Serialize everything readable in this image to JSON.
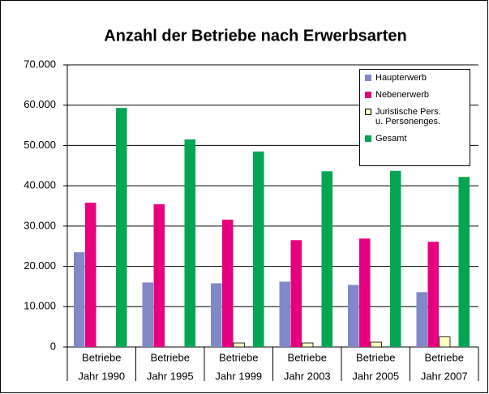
{
  "chart_data": {
    "type": "bar",
    "title": "Anzahl der Betriebe nach Erwerbsarten",
    "categories": [
      [
        "Betriebe",
        "Jahr 1990"
      ],
      [
        "Betriebe",
        "Jahr 1995"
      ],
      [
        "Betriebe",
        "Jahr 1999"
      ],
      [
        "Betriebe",
        "Jahr 2003"
      ],
      [
        "Betriebe",
        "Jahr 2005"
      ],
      [
        "Betriebe",
        "Jahr 2007"
      ]
    ],
    "series": [
      {
        "name": "Haupterwerb",
        "color": "#8088c8",
        "values": [
          23500,
          16000,
          15800,
          16200,
          15400,
          13600
        ]
      },
      {
        "name": "Nebenerwerb",
        "color": "#e6007e",
        "values": [
          35800,
          35400,
          31600,
          26500,
          26900,
          26100
        ]
      },
      {
        "name": "Juristische Pers.\nu. Personenges.",
        "color": "#ffffc0",
        "values": [
          null,
          null,
          1000,
          1000,
          1200,
          2500
        ]
      },
      {
        "name": "Gesamt",
        "color": "#00a651",
        "values": [
          59300,
          51500,
          48500,
          43600,
          43700,
          42200
        ]
      }
    ],
    "ylim": [
      0,
      70000
    ],
    "yticks": [
      0,
      {
        "value": 10000,
        "label": "10.000"
      },
      {
        "value": 20000,
        "label": "20.000"
      },
      {
        "value": 30000,
        "label": "30.000"
      },
      {
        "value": 40000,
        "label": "40.000"
      },
      {
        "value": 50000,
        "label": "50.000"
      },
      {
        "value": 60000,
        "label": "60.000"
      },
      {
        "value": 70000,
        "label": "70.000"
      }
    ],
    "grid": true,
    "legend": "top-right"
  }
}
